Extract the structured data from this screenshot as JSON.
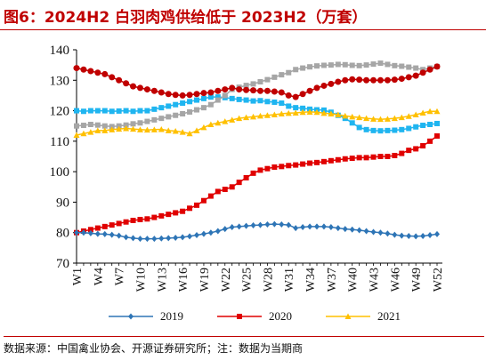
{
  "header": {
    "title": "图6：2024H2 白羽肉鸡供给低于 2023H2（万套）"
  },
  "footer": {
    "source": "数据来源：中国禽业协会、开源证券研究所；注：数据为当期商"
  },
  "chart_data": {
    "type": "line",
    "title": "",
    "xlabel": "",
    "ylabel": "",
    "ylim": [
      70,
      140
    ],
    "y_ticks": [
      70,
      80,
      90,
      100,
      110,
      120,
      130,
      140
    ],
    "x_tick_labels": [
      "W1",
      "W4",
      "W7",
      "W10",
      "W13",
      "W16",
      "W19",
      "W22",
      "W25",
      "W28",
      "W31",
      "W34",
      "W37",
      "W40",
      "W43",
      "W46",
      "W49",
      "W52"
    ],
    "x": [
      1,
      2,
      3,
      4,
      5,
      6,
      7,
      8,
      9,
      10,
      11,
      12,
      13,
      14,
      15,
      16,
      17,
      18,
      19,
      20,
      21,
      22,
      23,
      24,
      25,
      26,
      27,
      28,
      29,
      30,
      31,
      32,
      33,
      34,
      35,
      36,
      37,
      38,
      39,
      40,
      41,
      42,
      43,
      44,
      45,
      46,
      47,
      48,
      49,
      50,
      51,
      52
    ],
    "grid": false,
    "legend_position": "bottom",
    "series": [
      {
        "name": "2019",
        "color": "#2e75b6",
        "marker": "diamond",
        "values": [
          80,
          80,
          79.8,
          79.6,
          79.5,
          79.3,
          79,
          78.5,
          78.2,
          78,
          78,
          78,
          78.1,
          78.2,
          78.3,
          78.5,
          78.8,
          79.2,
          79.6,
          80,
          80.5,
          81.2,
          81.8,
          82,
          82.2,
          82.4,
          82.5,
          82.7,
          82.8,
          82.7,
          82.5,
          81.5,
          81.8,
          82,
          82,
          82,
          81.8,
          81.5,
          81.2,
          81,
          80.8,
          80.5,
          80.2,
          80,
          79.7,
          79.3,
          79,
          78.9,
          78.8,
          78.9,
          79.2,
          79.5
        ]
      },
      {
        "name": "2020",
        "color": "#e00000",
        "marker": "square",
        "values": [
          80,
          80.5,
          81,
          81.5,
          82,
          82.5,
          83,
          83.5,
          84,
          84.3,
          84.5,
          85,
          85.5,
          86,
          86.5,
          87,
          88,
          89,
          90.5,
          92,
          93.5,
          94.2,
          95,
          96.5,
          98,
          99.5,
          100.5,
          101,
          101.5,
          101.7,
          102,
          102.2,
          102.5,
          102.8,
          103,
          103.3,
          103.6,
          103.9,
          104.2,
          104.4,
          104.6,
          104.6,
          104.8,
          105,
          105,
          105.3,
          106,
          107,
          107.5,
          108.5,
          110,
          111.7
        ]
      },
      {
        "name": "2021",
        "color": "#ffc000",
        "marker": "triangle",
        "values": [
          112,
          112.5,
          113,
          113.5,
          113.5,
          113.8,
          114,
          114.2,
          114,
          113.8,
          113.7,
          113.8,
          113.9,
          113.5,
          113.3,
          113,
          112.5,
          113.5,
          114.5,
          115.5,
          116,
          116.5,
          117,
          117.5,
          117.8,
          118,
          118.3,
          118.5,
          118.7,
          119,
          119.2,
          119.3,
          119.5,
          119.6,
          119.5,
          119.2,
          119,
          118.7,
          118.3,
          118,
          117.8,
          117.5,
          117.3,
          117.2,
          117.3,
          117.5,
          117.8,
          118.2,
          118.7,
          119.3,
          119.8,
          119.8
        ]
      },
      {
        "name": "",
        "color": "#1fb5f0",
        "marker": "square",
        "values": [
          120,
          119.8,
          120,
          120,
          120,
          119.8,
          119.9,
          120,
          119.8,
          120,
          120,
          120.5,
          121,
          121.5,
          122,
          122.5,
          123,
          123.5,
          124,
          124.5,
          124.5,
          124.3,
          124,
          123.7,
          123.5,
          123.2,
          123.3,
          123,
          122.8,
          122.5,
          121.5,
          121,
          120.8,
          120.5,
          120.3,
          120.2,
          119.5,
          118.5,
          117.5,
          116,
          114.5,
          113.8,
          113.5,
          113.4,
          113.5,
          113.6,
          113.8,
          114.2,
          114.7,
          115.2,
          115.5,
          115.8
        ]
      },
      {
        "name": "",
        "color": "#a6a6a6",
        "marker": "square",
        "values": [
          115,
          115.2,
          115.5,
          115.3,
          115,
          114.8,
          115,
          115.3,
          115.7,
          116,
          116.5,
          117,
          117.5,
          118,
          118.5,
          119,
          119.6,
          120.3,
          121,
          122,
          123.5,
          125,
          127,
          127.7,
          128.3,
          128.8,
          129.5,
          130.2,
          131,
          131.8,
          132.5,
          133.5,
          134,
          134.4,
          134.7,
          134.9,
          135,
          135.2,
          135.1,
          134.9,
          134.8,
          135,
          135.3,
          135.6,
          135.2,
          134.8,
          134.6,
          134.3,
          134,
          133.5,
          134,
          134.5
        ]
      },
      {
        "name": "",
        "color": "#c00000",
        "marker": "circle",
        "values": [
          134,
          133.5,
          133,
          132.5,
          132,
          131,
          130,
          129,
          128,
          127.5,
          127,
          126.5,
          126,
          125.5,
          125.2,
          125,
          125.2,
          125.5,
          125.8,
          126,
          126.5,
          127,
          127.5,
          127,
          126.8,
          126.7,
          126.5,
          126.5,
          126.3,
          126,
          125,
          124.5,
          125.5,
          126.5,
          127.5,
          128.2,
          128.8,
          129.5,
          130,
          130.3,
          130.2,
          130,
          130,
          130,
          130,
          130.2,
          130.5,
          131,
          131.5,
          132.5,
          133.5,
          134.5
        ]
      }
    ]
  }
}
